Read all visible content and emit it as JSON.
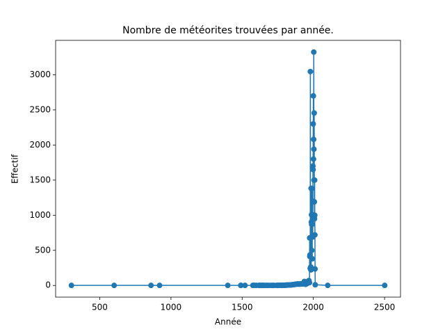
{
  "chart_data": {
    "type": "line",
    "title": "Nombre de météorites trouvées par année.",
    "x_label": "Année",
    "y_label": "Effectif",
    "x": [
      301,
      601,
      860,
      920,
      1399,
      1490,
      1491,
      1520,
      1575,
      1583,
      1600,
      1618,
      1621,
      1628,
      1635,
      1640,
      1647,
      1654,
      1668,
      1677,
      1688,
      1704,
      1715,
      1723,
      1741,
      1750,
      1753,
      1766,
      1768,
      1773,
      1775,
      1779,
      1780,
      1785,
      1790,
      1795,
      1800,
      1805,
      1810,
      1815,
      1820,
      1825,
      1830,
      1835,
      1840,
      1845,
      1850,
      1855,
      1860,
      1865,
      1870,
      1875,
      1880,
      1885,
      1890,
      1895,
      1900,
      1905,
      1910,
      1915,
      1920,
      1925,
      1930,
      1935,
      1937,
      1940,
      1945,
      1950,
      1955,
      1960,
      1963,
      1965,
      1967,
      1969,
      1971,
      1973,
      1974,
      1975,
      1976,
      1977,
      1978,
      1979,
      1980,
      1981,
      1982,
      1983,
      1984,
      1985,
      1986,
      1987,
      1988,
      1989,
      1990,
      1991,
      1992,
      1993,
      1994,
      1995,
      1996,
      1997,
      1998,
      1999,
      2000,
      2001,
      2002,
      2003,
      2004,
      2005,
      2006,
      2007,
      2008,
      2009,
      2010,
      2011,
      2012,
      2013,
      2101,
      2501
    ],
    "series": [
      {
        "name": "Effectif",
        "color": "#1f77b4",
        "values": [
          1,
          1,
          1,
          1,
          1,
          1,
          1,
          1,
          1,
          2,
          1,
          1,
          1,
          1,
          1,
          1,
          1,
          1,
          1,
          1,
          1,
          1,
          1,
          1,
          1,
          1,
          2,
          2,
          2,
          2,
          3,
          1,
          2,
          3,
          4,
          3,
          4,
          3,
          6,
          5,
          6,
          7,
          6,
          8,
          9,
          7,
          10,
          12,
          14,
          13,
          15,
          18,
          17,
          20,
          22,
          19,
          20,
          18,
          23,
          21,
          25,
          22,
          30,
          33,
          57,
          26,
          16,
          28,
          25,
          40,
          60,
          45,
          55,
          70,
          50,
          40,
          677,
          413,
          435,
          426,
          244,
          3046,
          249,
          238,
          264,
          222,
          1383,
          234,
          903,
          1007,
          872,
          500,
          1380,
          870,
          380,
          1005,
          1200,
          1005,
          690,
          1700,
          1650,
          2300,
          2700,
          1800,
          2080,
          3323,
          1940,
          1500,
          2456,
          1190,
          950,
          1500,
          1000,
          720,
          235,
          10,
          1,
          1
        ]
      }
    ],
    "xlim": [
      190,
      2612
    ],
    "ylim": [
      -166,
      3490
    ],
    "xticks": [
      500,
      1000,
      1500,
      2000,
      2500
    ],
    "yticks": [
      0,
      500,
      1000,
      1500,
      2000,
      2500,
      3000
    ],
    "grid": false,
    "markers": true
  }
}
